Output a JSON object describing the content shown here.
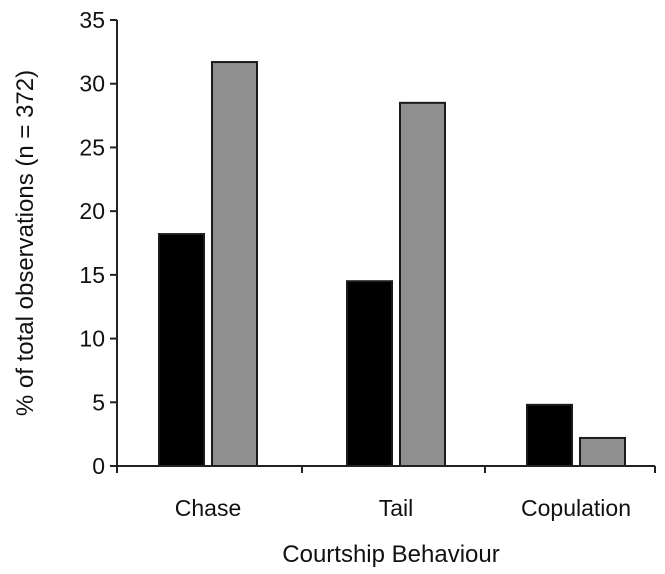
{
  "chart_data": {
    "type": "bar",
    "title": "",
    "xlabel": "Courtship Behaviour",
    "ylabel": "% of total observations (n = 372)",
    "categories": [
      "Chase",
      "Tail",
      "Copulation"
    ],
    "series": [
      {
        "values": [
          18.2,
          14.5,
          4.8
        ],
        "color": "#000000"
      },
      {
        "values": [
          31.7,
          28.5,
          2.2
        ],
        "color": "#8f8f8f"
      }
    ],
    "ylim": [
      0,
      35
    ],
    "yticks": [
      0,
      5,
      10,
      15,
      20,
      25,
      30,
      35
    ],
    "ytick_labels": [
      "0",
      "5",
      "10",
      "15",
      "20",
      "25",
      "30",
      "35"
    ],
    "grid": false,
    "legend": "none"
  }
}
